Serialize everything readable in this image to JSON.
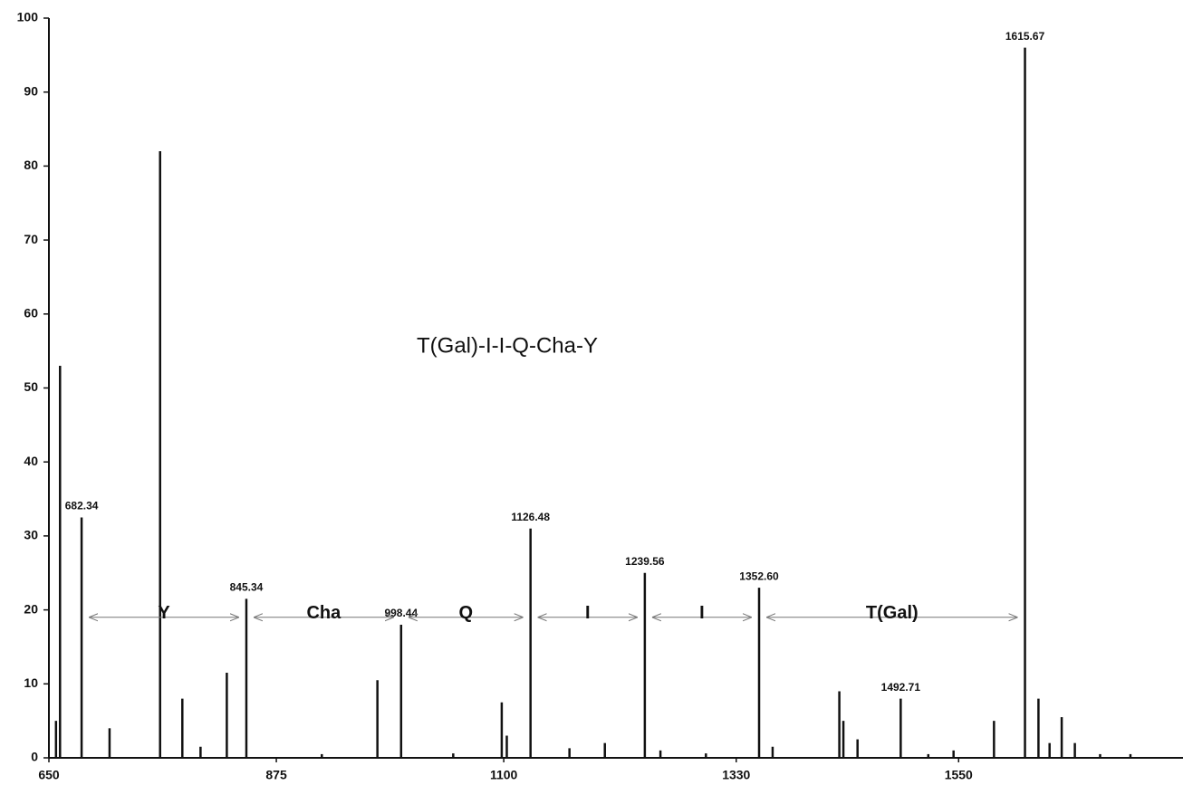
{
  "chart_data": {
    "type": "stick",
    "title": "T(Gal)-I-I-Q-Cha-Y",
    "x": [
      657,
      661,
      682.34,
      710,
      760,
      782,
      800,
      826,
      845.34,
      920,
      975,
      998.44,
      1050,
      1098,
      1103,
      1126.48,
      1165,
      1200,
      1239.56,
      1255,
      1300,
      1352.6,
      1366,
      1432,
      1436,
      1450,
      1492.71,
      1520,
      1545,
      1585,
      1615.67,
      1629,
      1640,
      1652,
      1665,
      1690,
      1720
    ],
    "values": [
      5,
      53,
      32.5,
      4,
      82,
      8,
      1.5,
      11.5,
      21.5,
      0.5,
      10.5,
      18,
      0.6,
      7.5,
      3,
      31,
      1.3,
      2,
      25,
      1,
      0.6,
      23,
      1.5,
      9,
      5,
      2.5,
      8,
      0.5,
      1,
      5,
      96,
      8,
      2,
      5.5,
      2,
      0.5,
      0.5
    ],
    "color": "#111111",
    "xlim": [
      650,
      1772
    ],
    "ylim": [
      0,
      100
    ],
    "xticks": [
      650,
      875,
      1100,
      1330,
      1550
    ],
    "yticks": [
      0,
      10,
      20,
      30,
      40,
      50,
      60,
      70,
      80,
      90,
      100
    ],
    "annotations": [
      {
        "label": "682.34",
        "x": 682.34,
        "y": 32.5
      },
      {
        "label": "845.34",
        "x": 845.34,
        "y": 21.5
      },
      {
        "label": "998.44",
        "x": 998.44,
        "y": 18
      },
      {
        "label": "1126.48",
        "x": 1126.48,
        "y": 31
      },
      {
        "label": "1239.56",
        "x": 1239.56,
        "y": 25
      },
      {
        "label": "1352.60",
        "x": 1352.6,
        "y": 23
      },
      {
        "label": "1492.71",
        "x": 1492.71,
        "y": 8
      },
      {
        "label": "1615.67",
        "x": 1615.67,
        "y": 96
      }
    ],
    "segments": [
      {
        "label": "Y",
        "x1": 682.34,
        "x2": 845.34
      },
      {
        "label": "Cha",
        "x1": 845.34,
        "x2": 998.44
      },
      {
        "label": "Q",
        "x1": 998.44,
        "x2": 1126.48
      },
      {
        "label": "I",
        "x1": 1126.48,
        "x2": 1239.56
      },
      {
        "label": "I",
        "x1": 1239.56,
        "x2": 1352.6
      },
      {
        "label": "T(Gal)",
        "x1": 1352.6,
        "x2": 1615.67
      }
    ]
  }
}
